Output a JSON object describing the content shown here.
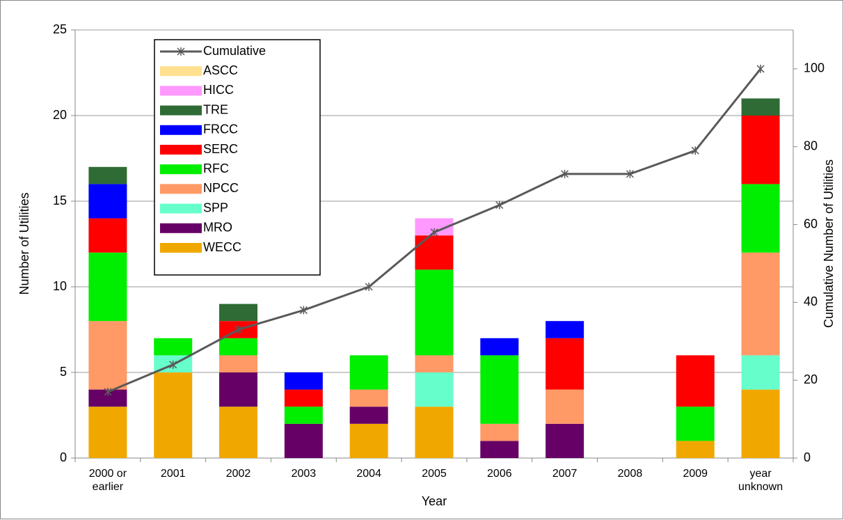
{
  "chart_data": {
    "type": "bar",
    "stacked": true,
    "x_label": "Year",
    "y_label": "Number of Utilities",
    "y2_label": "Cumulative Number of Utilities",
    "categories": [
      "2000 or earlier",
      "2001",
      "2002",
      "2003",
      "2004",
      "2005",
      "2006",
      "2007",
      "2008",
      "2009",
      "year unknown"
    ],
    "series": [
      {
        "name": "WECC",
        "color": "#f0a800",
        "values": [
          3,
          5,
          3,
          0,
          2,
          3,
          0,
          0,
          0,
          1,
          4
        ]
      },
      {
        "name": "MRO",
        "color": "#660066",
        "values": [
          1,
          0,
          2,
          2,
          1,
          0,
          1,
          2,
          0,
          0,
          0
        ]
      },
      {
        "name": "SPP",
        "color": "#66ffcc",
        "values": [
          0,
          1,
          0,
          0,
          0,
          2,
          0,
          0,
          0,
          0,
          2
        ]
      },
      {
        "name": "NPCC",
        "color": "#ff9966",
        "values": [
          4,
          0,
          1,
          0,
          1,
          1,
          1,
          2,
          0,
          0,
          6
        ]
      },
      {
        "name": "RFC",
        "color": "#00ee00",
        "values": [
          4,
          1,
          1,
          1,
          2,
          5,
          4,
          0,
          0,
          2,
          4
        ]
      },
      {
        "name": "SERC",
        "color": "#ff0000",
        "values": [
          2,
          0,
          1,
          1,
          0,
          2,
          0,
          3,
          0,
          3,
          4
        ]
      },
      {
        "name": "FRCC",
        "color": "#0000ff",
        "values": [
          2,
          0,
          0,
          1,
          0,
          0,
          1,
          1,
          0,
          0,
          0
        ]
      },
      {
        "name": "TRE",
        "color": "#2e6b35",
        "values": [
          1,
          0,
          1,
          0,
          0,
          0,
          0,
          0,
          0,
          0,
          1
        ]
      },
      {
        "name": "HICC",
        "color": "#ff99ff",
        "values": [
          0,
          0,
          0,
          0,
          0,
          1,
          0,
          0,
          0,
          0,
          0
        ]
      },
      {
        "name": "ASCC",
        "color": "#ffe08f",
        "values": [
          0,
          0,
          0,
          0,
          0,
          0,
          0,
          0,
          0,
          0,
          0
        ]
      },
      {
        "name": "Cumulative",
        "type": "line",
        "axis": "y2",
        "color": "#595959",
        "values": [
          17,
          24,
          33,
          38,
          44,
          58,
          65,
          73,
          73,
          79,
          100
        ]
      }
    ],
    "ylim": [
      0,
      25
    ],
    "yticks": [
      0,
      5,
      10,
      15,
      20,
      25
    ],
    "y2lim": [
      0,
      110
    ],
    "y2ticks": [
      0,
      20,
      40,
      60,
      80,
      100
    ],
    "grid": true,
    "legend": "upper left"
  }
}
